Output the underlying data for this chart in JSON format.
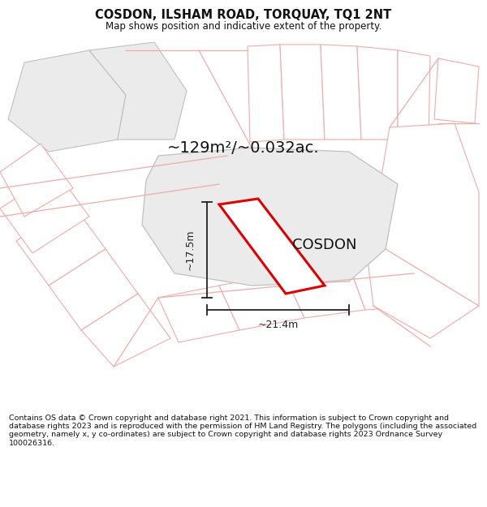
{
  "title": "COSDON, ILSHAM ROAD, TORQUAY, TQ1 2NT",
  "subtitle": "Map shows position and indicative extent of the property.",
  "area_text": "~129m²/~0.032ac.",
  "label": "COSDON",
  "dim_width": "~21.4m",
  "dim_height": "~17.5m",
  "footer": "Contains OS data © Crown copyright and database right 2021. This information is subject to Crown copyright and database rights 2023 and is reproduced with the permission of HM Land Registry. The polygons (including the associated geometry, namely x, y co-ordinates) are subject to Crown copyright and database rights 2023 Ordnance Survey 100026316.",
  "bg_color": "#ffffff",
  "map_bg": "#ffffff",
  "parcel_fill": "#ebebeb",
  "parcel_edge_gray": "#c0c0c0",
  "parcel_edge_pink": "#f0aaaa",
  "road_pink": "#f0aaaa",
  "main_plot_outline": "#dd0000",
  "dimension_color": "#222222",
  "title_color": "#111111",
  "footer_color": "#111111"
}
